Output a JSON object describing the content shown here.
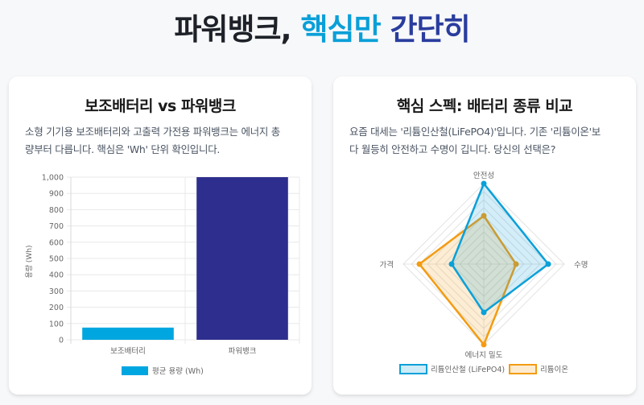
{
  "hero": {
    "part1": "파워뱅크,",
    "part2": "핵심만",
    "part3": "간단히"
  },
  "colors": {
    "accent_blue": "#0a9fd8",
    "navy": "#2a3d9e",
    "bar_small": "#00a6e0",
    "bar_large": "#2e2e8f",
    "lifepo4": "#0aa0d8",
    "li_ion": "#f39c12"
  },
  "left_card": {
    "title": "보조배터리 vs 파워뱅크",
    "desc_line1": "소형 기기용 보조배터리와 고출력 가전용 파워뱅크는 에너지 총",
    "desc_line2": "량부터 다릅니다. 핵심은 'Wh' 단위 확인입니다."
  },
  "right_card": {
    "title": "핵심 스펙: 배터리 종류 비교",
    "desc_line1": "요즘 대세는 '리튬인산철(LiFePO4)'입니다. 기존 '리튬이온'보",
    "desc_line2": "다 월등히 안전하고 수명이 깁니다. 당신의 선택은?"
  },
  "chart_data": [
    {
      "type": "bar",
      "title": "",
      "categories": [
        "보조배터리",
        "파워뱅크"
      ],
      "series": [
        {
          "name": "평균 용량 (Wh)",
          "values": [
            75,
            1000
          ]
        }
      ],
      "bar_colors": [
        "#00a6e0",
        "#2e2e8f"
      ],
      "xlabel": "",
      "ylabel": "용량 (Wh)",
      "ylim": [
        0,
        1000
      ],
      "yticks": [
        "0",
        "100",
        "200",
        "300",
        "400",
        "500",
        "600",
        "700",
        "800",
        "900",
        "1,000"
      ],
      "grid": true,
      "legend_position": "bottom",
      "legend": "평균 용량 (Wh)"
    },
    {
      "type": "radar",
      "title": "",
      "categories": [
        "안전성",
        "수명",
        "에너지 밀도",
        "가격"
      ],
      "series": [
        {
          "name": "리튬인산철 (LiFePO4)",
          "values": [
            10,
            8,
            6,
            4
          ]
        },
        {
          "name": "리튬이온",
          "values": [
            6,
            4,
            10,
            8
          ]
        }
      ],
      "rlim": [
        0,
        10
      ],
      "grid": true,
      "legend_position": "bottom"
    }
  ]
}
